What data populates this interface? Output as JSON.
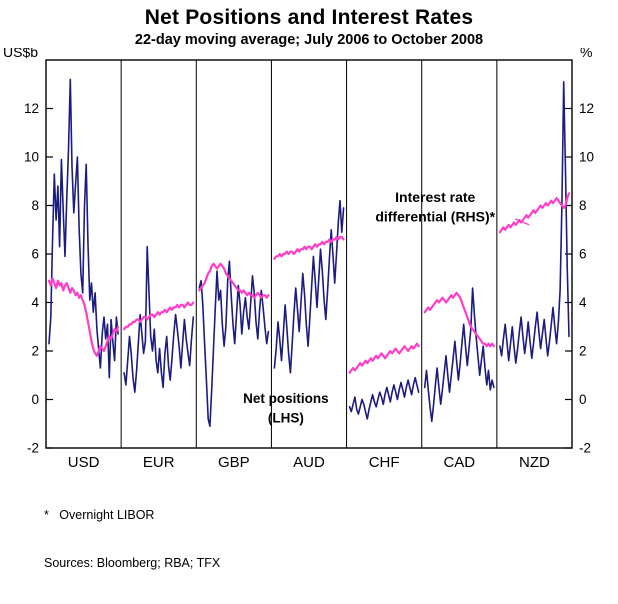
{
  "footnotes": [
    "*   Overnight LIBOR",
    "Sources: Bloomberg; RBA; TFX"
  ],
  "chart_data": {
    "type": "line",
    "title": "Net Positions and Interest Rates",
    "subtitle": "22-day moving average; July 2006 to October 2008",
    "left_axis": {
      "unit": "US$b",
      "ticks": [
        -2,
        0,
        2,
        4,
        6,
        8,
        10,
        12
      ]
    },
    "right_axis": {
      "unit": "%",
      "ticks": [
        -2,
        0,
        2,
        4,
        6,
        8,
        10,
        12
      ]
    },
    "ylim": [
      -2,
      14
    ],
    "grid": false,
    "legend_position": "in-plot-annotations",
    "categories": [
      "USD",
      "EUR",
      "GBP",
      "AUD",
      "CHF",
      "CAD",
      "NZD"
    ],
    "series_meta": {
      "net": {
        "label": "Net positions (LHS)",
        "color": "#1b1b80",
        "axis": "left",
        "unit": "US$b"
      },
      "rate": {
        "label": "Interest rate differential (RHS)*",
        "color": "#ff3ec8",
        "axis": "right",
        "unit": "%"
      }
    },
    "annotations": {
      "rate_label_lines": [
        "Interest rate",
        "differential (RHS)*"
      ],
      "net_label_lines": [
        "Net positions",
        "(LHS)"
      ]
    },
    "panels": [
      {
        "label": "USD",
        "net_positions_usdb": [
          2.3,
          3.4,
          6.5,
          9.3,
          7.4,
          8.8,
          6.3,
          9.9,
          7.8,
          5.9,
          8.2,
          10.3,
          13.2,
          9.6,
          7.7,
          8.9,
          10.0,
          7.1,
          5.2,
          4.4,
          8.0,
          9.7,
          6.4,
          4.1,
          4.8,
          3.6,
          4.4,
          2.9,
          2.1,
          1.3,
          2.7,
          3.4,
          2.5,
          3.1,
          0.9,
          3.3,
          2.4,
          1.6,
          3.4,
          2.7
        ],
        "rate_differential_pct": [
          4.9,
          4.7,
          5.0,
          4.8,
          4.6,
          4.9,
          4.7,
          4.8,
          4.5,
          4.7,
          4.8,
          4.6,
          4.4,
          4.6,
          4.5,
          4.3,
          4.4,
          4.2,
          4.3,
          4.1,
          3.9,
          3.6,
          3.2,
          2.8,
          2.4,
          2.1,
          1.9,
          1.8,
          2.0,
          2.2,
          2.1,
          2.0,
          2.2,
          2.4,
          2.6,
          2.5,
          2.7,
          2.9,
          2.8,
          3.0
        ]
      },
      {
        "label": "EUR",
        "net_positions_usdb": [
          1.1,
          0.6,
          1.6,
          2.6,
          1.9,
          0.9,
          0.3,
          1.2,
          2.3,
          3.5,
          2.7,
          1.9,
          2.4,
          6.3,
          4.4,
          2.6,
          2.0,
          2.9,
          1.6,
          1.1,
          2.1,
          1.1,
          0.5,
          1.9,
          2.6,
          1.4,
          0.8,
          1.7,
          2.7,
          3.5,
          2.9,
          2.2,
          1.3,
          2.3,
          3.3,
          2.5,
          1.9,
          1.4,
          2.5,
          3.4
        ],
        "rate_differential_pct": [
          2.9,
          3.0,
          3.0,
          3.1,
          3.1,
          3.2,
          3.2,
          3.3,
          3.3,
          3.2,
          3.3,
          3.4,
          3.4,
          3.3,
          3.4,
          3.5,
          3.5,
          3.4,
          3.5,
          3.6,
          3.5,
          3.6,
          3.6,
          3.7,
          3.6,
          3.7,
          3.8,
          3.7,
          3.8,
          3.8,
          3.9,
          3.8,
          3.9,
          3.9,
          3.8,
          3.9,
          4.0,
          3.9,
          3.9,
          4.0
        ]
      },
      {
        "label": "GBP",
        "net_positions_usdb": [
          4.6,
          4.9,
          3.9,
          2.3,
          0.8,
          -0.8,
          -1.1,
          0.4,
          2.1,
          3.7,
          5.3,
          4.1,
          4.5,
          3.1,
          2.2,
          3.0,
          4.9,
          5.7,
          4.3,
          3.1,
          2.3,
          3.5,
          4.7,
          3.9,
          2.7,
          3.6,
          4.2,
          3.4,
          2.9,
          4.0,
          5.1,
          4.4,
          3.2,
          2.5,
          3.7,
          4.5,
          3.8,
          3.0,
          2.3,
          2.8
        ],
        "rate_differential_pct": [
          4.5,
          4.6,
          4.7,
          4.8,
          5.0,
          5.2,
          5.3,
          5.5,
          5.6,
          5.5,
          5.4,
          5.5,
          5.6,
          5.5,
          5.4,
          5.2,
          5.1,
          5.0,
          4.9,
          4.8,
          4.7,
          4.6,
          4.5,
          4.5,
          4.4,
          4.5,
          4.4,
          4.3,
          4.4,
          4.3,
          4.3,
          4.2,
          4.3,
          4.4,
          4.3,
          4.2,
          4.3,
          4.3,
          4.2,
          4.3
        ]
      },
      {
        "label": "AUD",
        "net_positions_usdb": [
          1.3,
          2.1,
          3.2,
          2.5,
          1.6,
          2.7,
          3.9,
          3.0,
          1.9,
          1.1,
          2.3,
          3.5,
          4.6,
          3.7,
          2.8,
          4.0,
          5.2,
          4.3,
          3.1,
          2.2,
          3.4,
          4.7,
          5.9,
          4.9,
          3.8,
          5.0,
          6.2,
          5.3,
          4.1,
          3.3,
          4.5,
          5.8,
          7.0,
          6.0,
          4.8,
          6.0,
          7.3,
          8.2,
          6.9,
          7.9
        ],
        "rate_differential_pct": [
          5.8,
          5.9,
          5.9,
          6.0,
          5.9,
          6.0,
          6.0,
          6.1,
          6.0,
          6.1,
          6.1,
          6.0,
          6.1,
          6.2,
          6.1,
          6.2,
          6.2,
          6.3,
          6.2,
          6.3,
          6.3,
          6.2,
          6.3,
          6.4,
          6.3,
          6.4,
          6.4,
          6.5,
          6.4,
          6.5,
          6.5,
          6.6,
          6.5,
          6.6,
          6.6,
          6.7,
          6.6,
          6.7,
          6.7,
          6.6
        ]
      },
      {
        "label": "CHF",
        "net_positions_usdb": [
          -0.3,
          -0.5,
          -0.2,
          0.1,
          -0.4,
          -0.6,
          -0.3,
          0.0,
          -0.2,
          -0.5,
          -0.8,
          -0.4,
          -0.1,
          0.2,
          -0.1,
          -0.3,
          0.0,
          0.3,
          0.1,
          -0.2,
          0.2,
          0.5,
          0.2,
          -0.1,
          0.3,
          0.6,
          0.3,
          0.0,
          0.4,
          0.7,
          0.4,
          0.1,
          0.5,
          0.8,
          0.5,
          0.2,
          0.6,
          0.9,
          0.6,
          0.3
        ],
        "rate_differential_pct": [
          1.1,
          1.2,
          1.3,
          1.2,
          1.3,
          1.4,
          1.5,
          1.4,
          1.5,
          1.6,
          1.5,
          1.6,
          1.7,
          1.6,
          1.7,
          1.8,
          1.7,
          1.8,
          1.9,
          1.8,
          1.7,
          1.8,
          1.9,
          2.0,
          1.9,
          2.0,
          2.1,
          2.0,
          1.9,
          2.0,
          2.1,
          2.2,
          2.1,
          2.0,
          2.1,
          2.2,
          2.1,
          2.2,
          2.3,
          2.2
        ]
      },
      {
        "label": "CAD",
        "net_positions_usdb": [
          0.5,
          1.2,
          0.4,
          -0.3,
          -0.9,
          -0.2,
          0.6,
          1.3,
          0.5,
          -0.2,
          0.4,
          1.1,
          1.8,
          1.0,
          0.3,
          1.0,
          1.7,
          2.4,
          1.6,
          0.8,
          1.5,
          2.3,
          3.1,
          2.2,
          1.4,
          2.1,
          2.9,
          4.6,
          3.5,
          2.6,
          1.8,
          1.0,
          1.6,
          2.2,
          1.3,
          0.6,
          1.2,
          0.4,
          0.8,
          0.5
        ],
        "rate_differential_pct": [
          3.6,
          3.7,
          3.8,
          3.7,
          3.8,
          3.9,
          4.0,
          4.1,
          4.0,
          4.1,
          4.2,
          4.1,
          4.0,
          4.1,
          4.2,
          4.3,
          4.2,
          4.3,
          4.4,
          4.3,
          4.2,
          4.0,
          3.8,
          3.6,
          3.4,
          3.2,
          3.0,
          2.9,
          2.8,
          2.7,
          2.6,
          2.5,
          2.4,
          2.3,
          2.3,
          2.2,
          2.3,
          2.2,
          2.3,
          2.2
        ]
      },
      {
        "label": "NZD",
        "net_positions_usdb": [
          2.2,
          1.8,
          2.5,
          3.1,
          2.4,
          1.6,
          2.3,
          3.0,
          2.2,
          1.5,
          2.1,
          2.8,
          3.4,
          2.6,
          1.9,
          2.5,
          3.2,
          2.4,
          1.7,
          2.3,
          3.0,
          3.6,
          2.8,
          2.1,
          2.7,
          3.3,
          2.5,
          1.8,
          2.4,
          3.1,
          3.8,
          3.0,
          2.3,
          3.2,
          4.5,
          8.0,
          13.1,
          9.4,
          5.5,
          2.6
        ],
        "rate_differential_pct": [
          6.9,
          7.0,
          7.1,
          7.0,
          7.1,
          7.2,
          7.1,
          7.2,
          7.3,
          7.2,
          7.3,
          7.4,
          7.3,
          7.4,
          7.5,
          7.6,
          7.5,
          7.6,
          7.7,
          7.8,
          7.7,
          7.8,
          7.9,
          8.0,
          7.9,
          8.0,
          8.1,
          8.0,
          8.1,
          8.2,
          8.1,
          8.2,
          8.3,
          8.2,
          8.1,
          8.0,
          7.9,
          8.0,
          8.3,
          8.5
        ]
      }
    ]
  }
}
